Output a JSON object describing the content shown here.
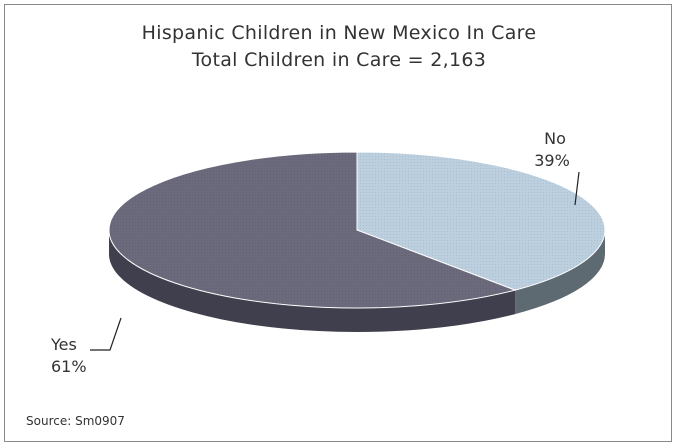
{
  "chart_data": {
    "type": "pie",
    "title": "Hispanic Children in New Mexico In Care",
    "subtitle": "Total Children in Care = 2,163",
    "slices": [
      {
        "label": "No",
        "value": 39,
        "value_label": "39%",
        "color": "#bccfdf",
        "side_color": "#5e6a72"
      },
      {
        "label": "Yes",
        "value": 61,
        "value_label": "61%",
        "color": "#6a6a7c",
        "side_color": "#3f3f4d"
      }
    ],
    "start_angle_deg": -90,
    "legend": "none",
    "source": "Source: Sm0907"
  }
}
